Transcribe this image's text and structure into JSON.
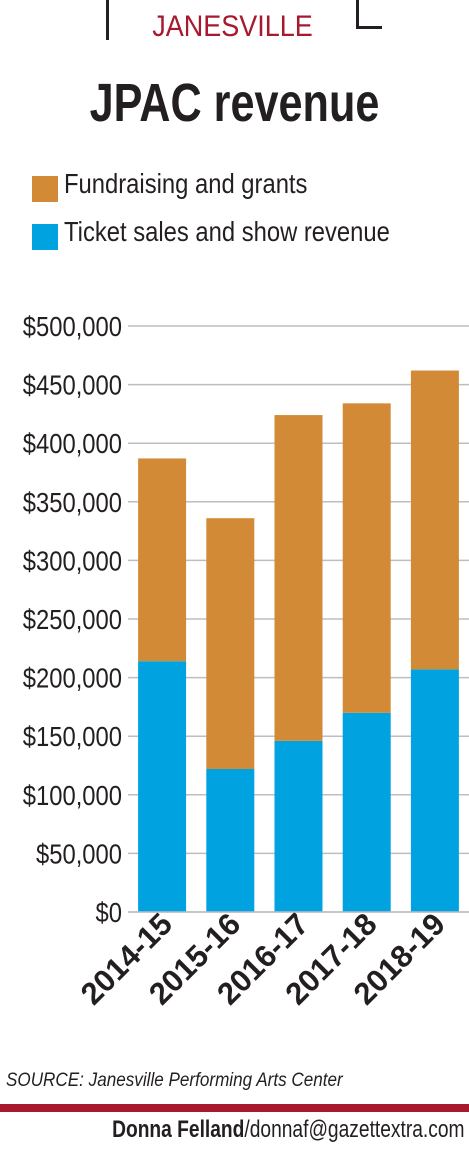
{
  "header": {
    "kicker": "JANESVILLE",
    "title": "JPAC revenue"
  },
  "colors": {
    "accent": "#a6192e",
    "fundraising": "#d38a36",
    "tickets": "#00a2e0",
    "grid": "#bcbec0",
    "text": "#231f20"
  },
  "chart_data": {
    "type": "bar",
    "stacked": true,
    "categories": [
      "2014-15",
      "2015-16",
      "2016-17",
      "2017-18",
      "2018-19"
    ],
    "series": [
      {
        "name": "Ticket sales and show revenue",
        "values": [
          214000,
          122000,
          146000,
          170000,
          207000
        ]
      },
      {
        "name": "Fundraising and grants",
        "values": [
          173000,
          214000,
          278000,
          264000,
          255000
        ]
      }
    ],
    "legend": [
      "Fundraising and grants",
      "Ticket sales and show revenue"
    ],
    "legend_position": "top-left",
    "ylim": [
      0,
      500000
    ],
    "yticks": [
      0,
      50000,
      100000,
      150000,
      200000,
      250000,
      300000,
      350000,
      400000,
      450000,
      500000
    ],
    "ytick_labels": [
      "$0",
      "$50,000",
      "$100,000",
      "$150,000",
      "$200,000",
      "$250,000",
      "$300,000",
      "$350,000",
      "$400,000",
      "$450,000",
      "$500,000"
    ],
    "grid": true,
    "title": "JPAC revenue"
  },
  "footer": {
    "source": "SOURCE: Janesville Performing Arts Center",
    "credit_name": "Donna Felland",
    "credit_email": "/donnaf@gazettextra.com"
  }
}
